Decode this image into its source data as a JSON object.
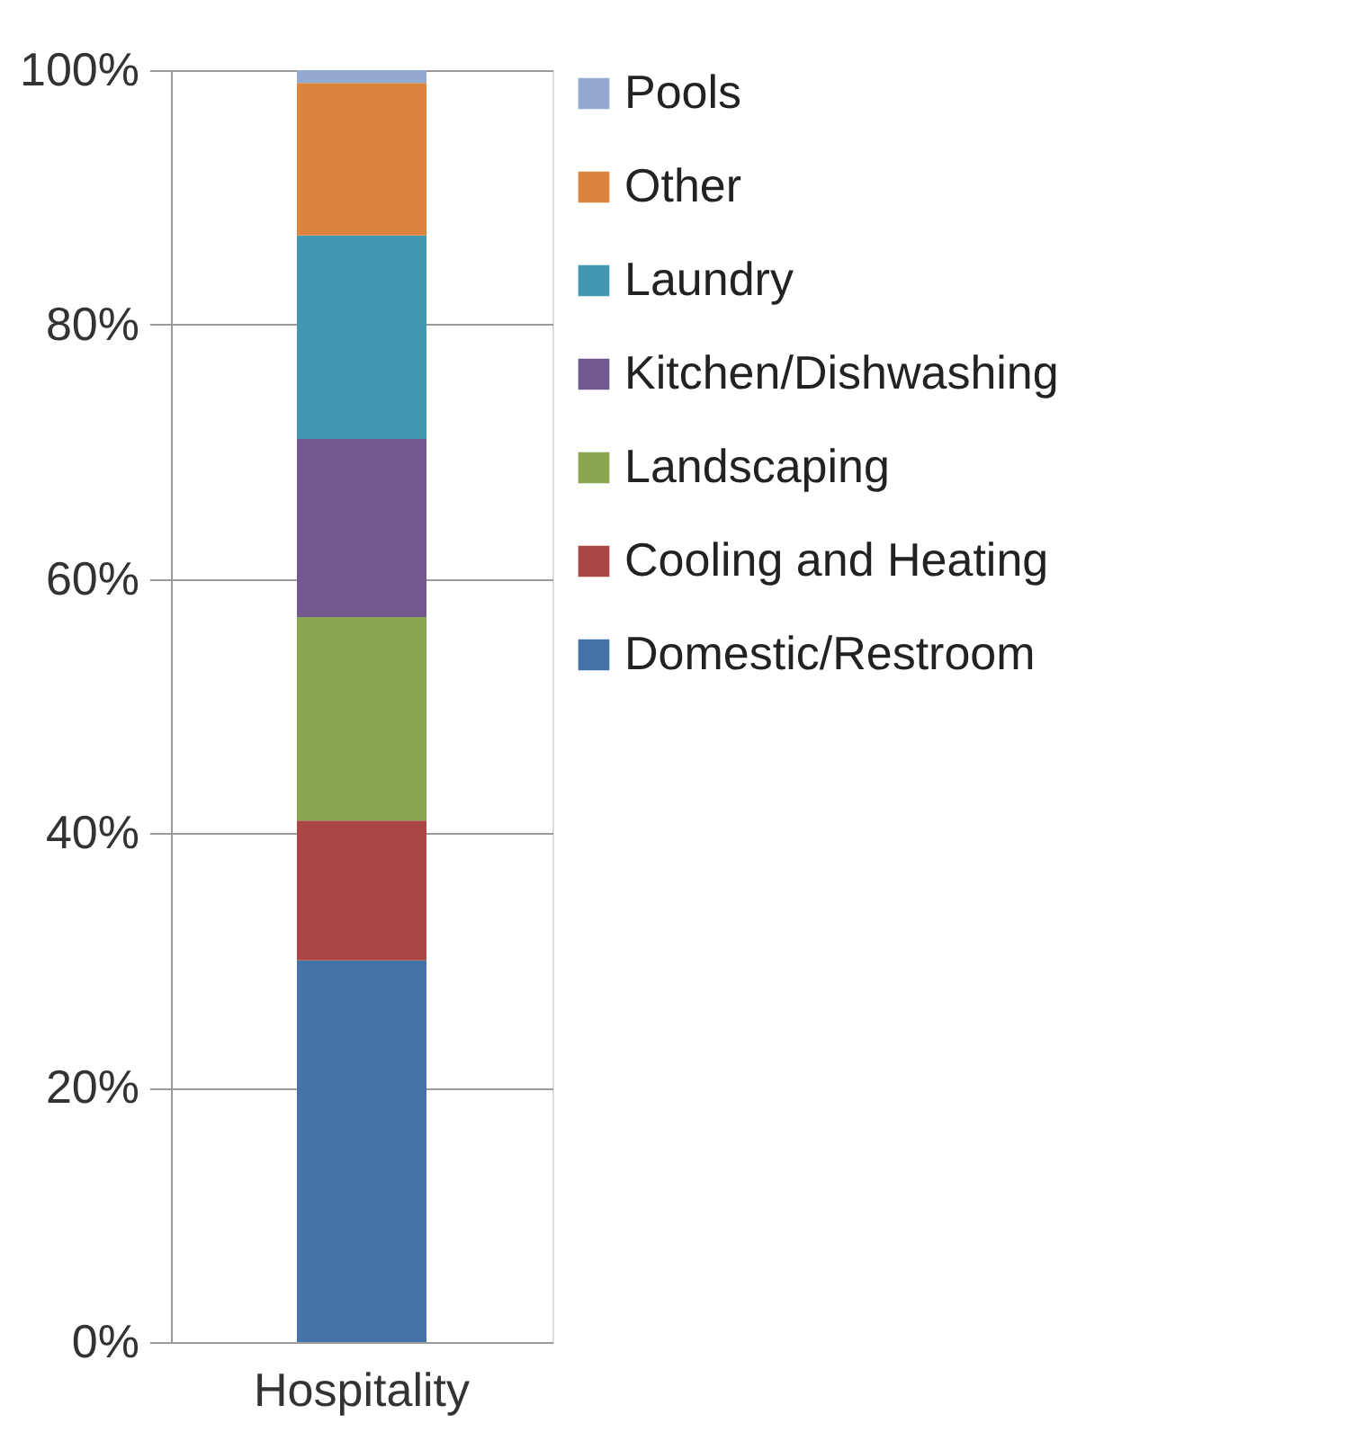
{
  "chart_data": {
    "type": "bar",
    "stacked": true,
    "categories": [
      "Hospitality"
    ],
    "series": [
      {
        "name": "Domestic/Restroom",
        "color": "#4572a7",
        "values": [
          30
        ]
      },
      {
        "name": "Cooling and Heating",
        "color": "#aa4643",
        "values": [
          11
        ]
      },
      {
        "name": "Landscaping",
        "color": "#89a54e",
        "values": [
          16
        ]
      },
      {
        "name": "Kitchen/Dishwashing",
        "color": "#71588f",
        "values": [
          14
        ]
      },
      {
        "name": "Laundry",
        "color": "#4198af",
        "values": [
          16
        ]
      },
      {
        "name": "Other",
        "color": "#db843d",
        "values": [
          12
        ]
      },
      {
        "name": "Pools",
        "color": "#93a9cf",
        "values": [
          1
        ]
      }
    ],
    "ylim": [
      0,
      100
    ],
    "yticks": [
      {
        "value": 0,
        "label": "0%"
      },
      {
        "value": 20,
        "label": "20%"
      },
      {
        "value": 40,
        "label": "40%"
      },
      {
        "value": 60,
        "label": "60%"
      },
      {
        "value": 80,
        "label": "80%"
      },
      {
        "value": 100,
        "label": "100%"
      }
    ],
    "grid": "y",
    "legend": "right"
  }
}
